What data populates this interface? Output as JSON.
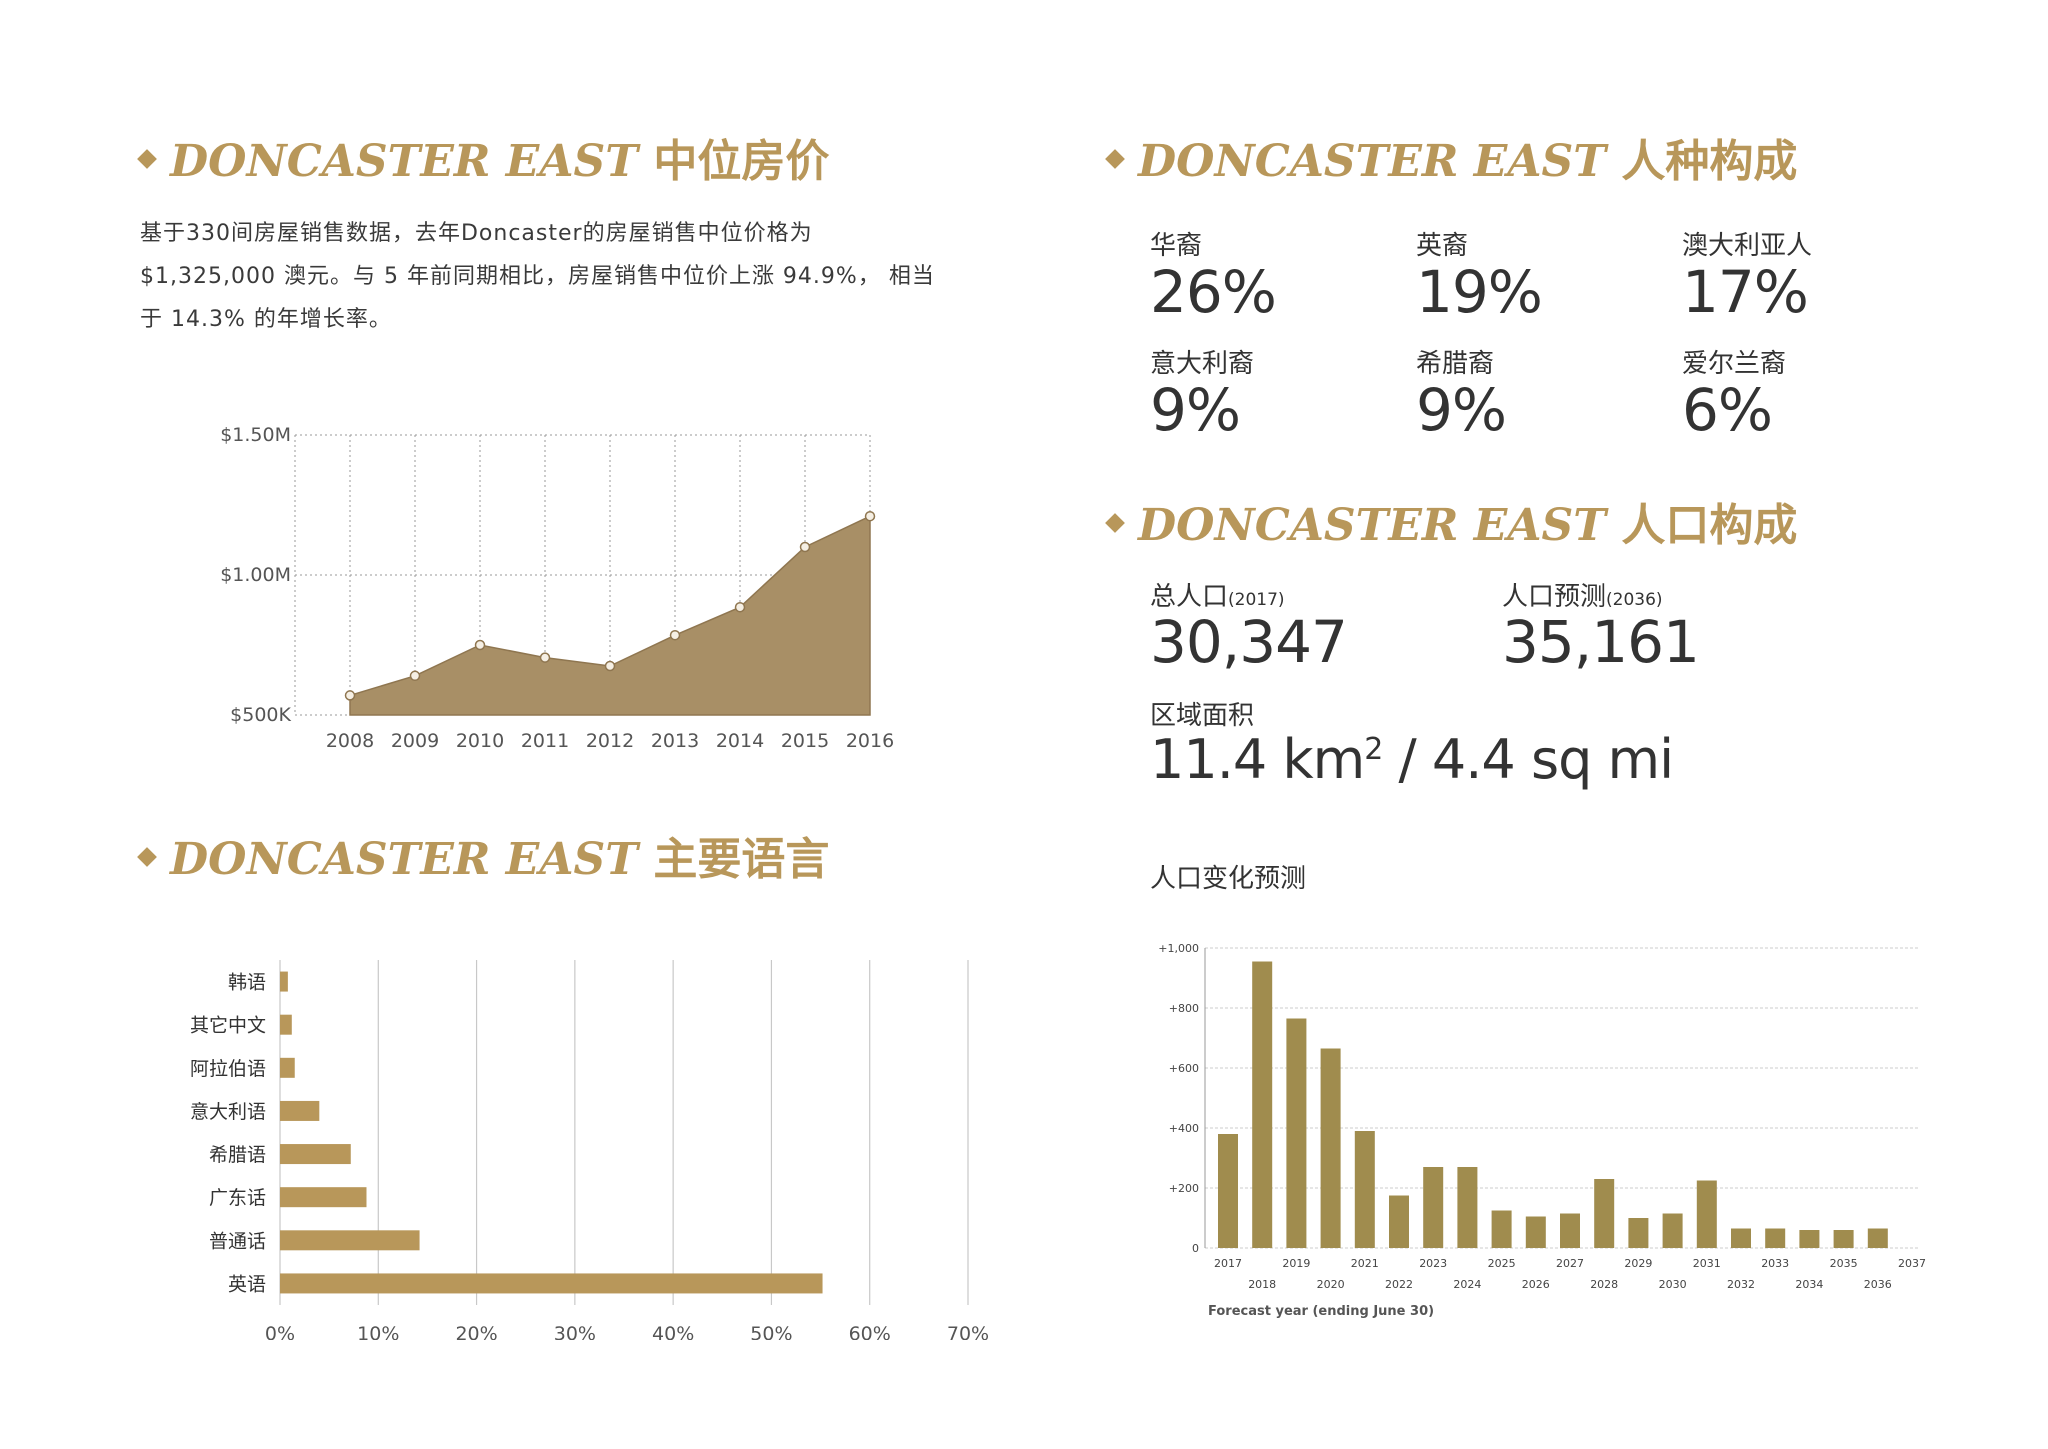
{
  "sections": {
    "price": {
      "title_en": "DONCASTER EAST",
      "title_zh": "中位房价",
      "description": "基于330间房屋销售数据，去年Doncaster的房屋销售中位价格为$1,325,000 澳元。与 5 年前同期相比，房屋销售中位价上涨 94.9%， 相当于 14.3% 的年增长率。"
    },
    "language": {
      "title_en": "DONCASTER EAST",
      "title_zh": "主要语言"
    },
    "ethnicity": {
      "title_en": "DONCASTER EAST",
      "title_zh": "人种构成",
      "stats": [
        {
          "label": "华裔",
          "value": "26%"
        },
        {
          "label": "英裔",
          "value": "19%"
        },
        {
          "label": "澳大利亚人",
          "value": "17%"
        },
        {
          "label": "意大利裔",
          "value": "9%"
        },
        {
          "label": "希腊裔",
          "value": "9%"
        },
        {
          "label": "爱尔兰裔",
          "value": "6%"
        }
      ]
    },
    "population": {
      "title_en": "DONCASTER EAST",
      "title_zh": "人口构成",
      "total_label": "总人口",
      "total_year": "(2017)",
      "total_value": "30,347",
      "forecast_label": "人口预测",
      "forecast_year": "(2036)",
      "forecast_value": "35,161",
      "area_label": "区域面积",
      "area_value_1": "11.4 km",
      "area_sup": "2",
      "area_value_2": " / 4.4 sq mi",
      "change_title": "人口变化预测"
    }
  },
  "chart_data": [
    {
      "type": "area",
      "x": [
        "2008",
        "2009",
        "2010",
        "2011",
        "2012",
        "2013",
        "2014",
        "2015",
        "2016"
      ],
      "values": [
        570000,
        640000,
        750000,
        705000,
        675000,
        785000,
        885000,
        1100000,
        1210000
      ],
      "ylim": [
        500000,
        1500000
      ],
      "ytick_labels": [
        "$500K",
        "$1.00M",
        "$1.50M"
      ],
      "grid": true,
      "color": "#a88f66"
    },
    {
      "type": "bar",
      "orientation": "horizontal",
      "categories": [
        "韩语",
        "其它中文",
        "阿拉伯语",
        "意大利语",
        "希腊语",
        "广东话",
        "普通话",
        "英语"
      ],
      "values": [
        0.8,
        1.2,
        1.5,
        4.0,
        7.2,
        8.8,
        14.2,
        55.2
      ],
      "xlim": [
        0,
        70
      ],
      "xtick_labels": [
        "0%",
        "10%",
        "20%",
        "30%",
        "40%",
        "50%",
        "60%",
        "70%"
      ],
      "color": "#b8975a"
    },
    {
      "type": "bar",
      "categories": [
        "2017",
        "2018",
        "2019",
        "2020",
        "2021",
        "2022",
        "2023",
        "2024",
        "2025",
        "2026",
        "2027",
        "2028",
        "2029",
        "2030",
        "2031",
        "2032",
        "2033",
        "2034",
        "2035",
        "2036"
      ],
      "values": [
        380,
        955,
        765,
        665,
        390,
        175,
        270,
        270,
        125,
        105,
        115,
        230,
        100,
        115,
        225,
        65,
        65,
        60,
        60,
        65
      ],
      "ylim": [
        0,
        1000
      ],
      "ytick_labels": [
        "0",
        "+200",
        "+400",
        "+600",
        "+800",
        "+1,000"
      ],
      "x_odd_labels": [
        "2017",
        "2019",
        "2021",
        "2023",
        "2025",
        "2027",
        "2029",
        "2031",
        "2033",
        "2035",
        "2037"
      ],
      "x_even_labels": [
        "2018",
        "2020",
        "2022",
        "2024",
        "2026",
        "2028",
        "2030",
        "2032",
        "2034",
        "2036"
      ],
      "xlabel": "Forecast year (ending June 30)",
      "color": "#a08c4e"
    }
  ]
}
